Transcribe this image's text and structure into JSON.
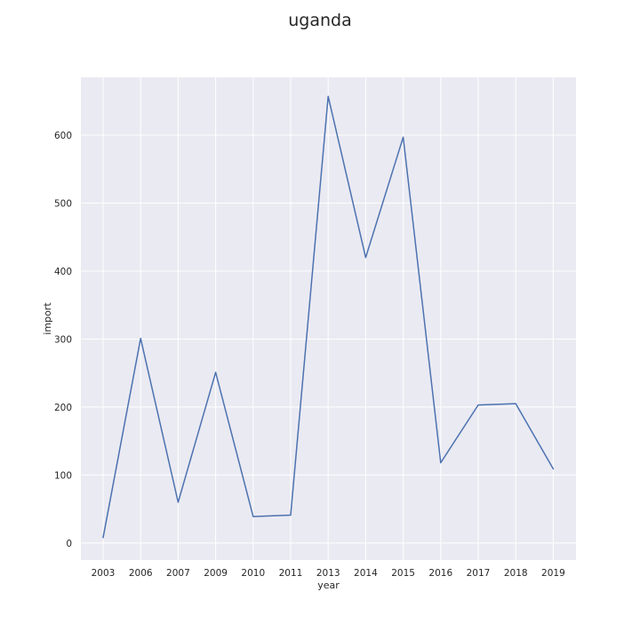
{
  "chart_data": {
    "type": "line",
    "title": "uganda",
    "xlabel": "year",
    "ylabel": "import",
    "categories": [
      "2003",
      "2006",
      "2007",
      "2009",
      "2010",
      "2011",
      "2013",
      "2014",
      "2015",
      "2016",
      "2017",
      "2018",
      "2019"
    ],
    "series": [
      {
        "values": [
          8,
          301,
          60,
          251,
          39,
          41,
          657,
          420,
          597,
          118,
          203,
          205,
          109
        ]
      }
    ],
    "ylim": [
      -25,
      685
    ],
    "yticks": [
      0,
      100,
      200,
      300,
      400,
      500,
      600
    ],
    "grid": true,
    "legend": "none"
  },
  "colors": {
    "plot_background": "#eaeaf2",
    "grid": "#ffffff",
    "line": "#4c72b0"
  }
}
